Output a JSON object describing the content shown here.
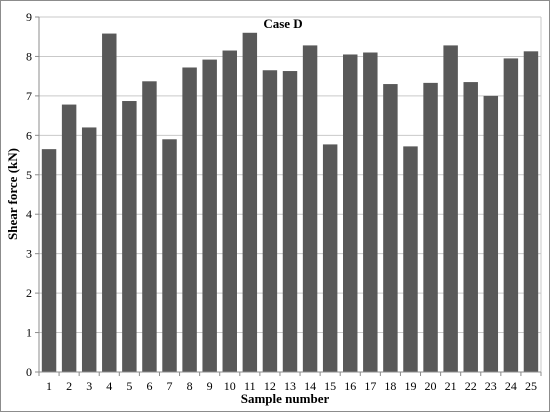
{
  "chart_data": {
    "type": "bar",
    "title": "Case D",
    "xlabel": "Sample number",
    "ylabel": "Shear force (kN)",
    "categories": [
      "1",
      "2",
      "3",
      "4",
      "5",
      "6",
      "7",
      "8",
      "9",
      "10",
      "11",
      "12",
      "13",
      "14",
      "15",
      "16",
      "17",
      "18",
      "19",
      "20",
      "21",
      "22",
      "23",
      "24",
      "25"
    ],
    "values": [
      5.65,
      6.78,
      6.2,
      8.58,
      6.87,
      7.37,
      5.9,
      7.72,
      7.92,
      8.15,
      8.6,
      7.65,
      7.63,
      8.28,
      5.77,
      8.05,
      8.1,
      7.3,
      5.72,
      7.33,
      8.28,
      7.35,
      7.0,
      7.95,
      8.13
    ],
    "ylim": [
      0,
      9
    ],
    "yticks": [
      "0",
      "1",
      "2",
      "3",
      "4",
      "5",
      "6",
      "7",
      "8",
      "9"
    ],
    "grid": true,
    "legend": "none",
    "colors": {
      "bar": "#595959",
      "grid": "#c9c9c9",
      "axis": "#8c8c8c"
    }
  }
}
